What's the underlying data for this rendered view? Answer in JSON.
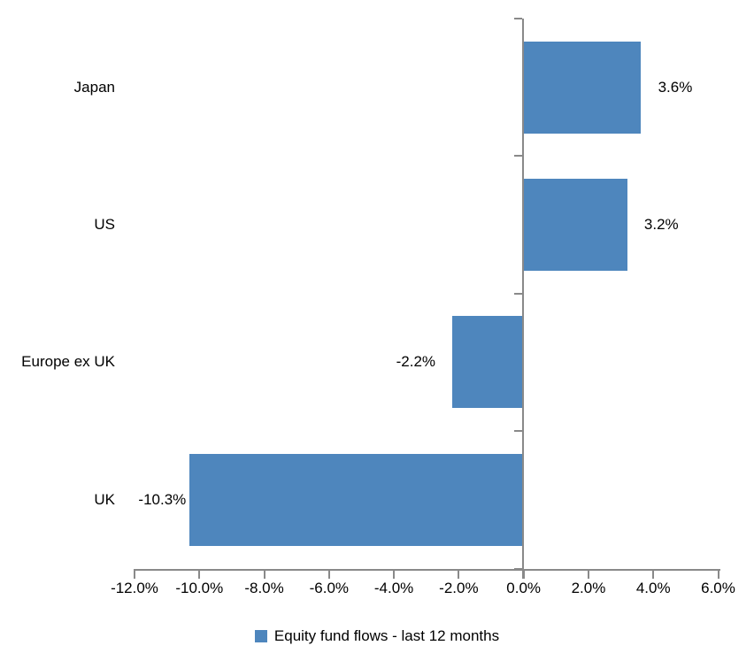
{
  "chart_data": {
    "type": "bar",
    "orientation": "horizontal",
    "title": "",
    "categories": [
      "Japan",
      "US",
      "Europe ex UK",
      "UK"
    ],
    "values": [
      3.6,
      3.2,
      -2.2,
      -10.3
    ],
    "data_labels": [
      "3.6%",
      "3.2%",
      "-2.2%",
      "-10.3%"
    ],
    "x_ticks": [
      -12,
      -10,
      -8,
      -6,
      -4,
      -2,
      0,
      2,
      4,
      6
    ],
    "x_tick_labels": [
      "-12.0%",
      "-10.0%",
      "-8.0%",
      "-6.0%",
      "-4.0%",
      "-2.0%",
      "0.0%",
      "2.0%",
      "4.0%",
      "6.0%"
    ],
    "xlim": [
      -12,
      6
    ],
    "grid": false,
    "legend_position": "bottom",
    "legend": [
      "Equity fund flows - last 12 months"
    ],
    "bar_color": "#4E86BD",
    "axis_color": "#898989",
    "text_color": "#000000",
    "background": "#FFFFFF"
  }
}
